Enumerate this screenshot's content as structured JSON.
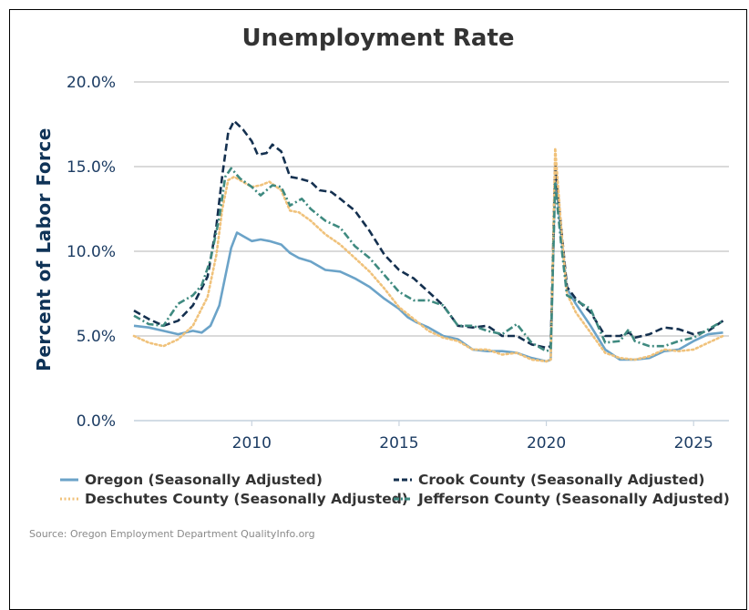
{
  "chart_data": {
    "type": "line",
    "title": "Unemployment Rate",
    "ylabel": "Percent of Labor Force",
    "xlabel": "",
    "ylim": [
      0,
      20
    ],
    "xlim": [
      2006,
      2026.2
    ],
    "y_ticks": [
      "0.0%",
      "5.0%",
      "10.0%",
      "15.0%",
      "20.0%"
    ],
    "x_ticks": [
      "2010",
      "2015",
      "2020",
      "2025"
    ],
    "grid": "horizontal",
    "legend_position": "bottom",
    "source": "Source: Oregon Employment Department QualityInfo.org",
    "series": [
      {
        "name": "Oregon (Seasonally Adjusted)",
        "color": "#6ba3c8",
        "style": "solid",
        "points": [
          [
            2006.0,
            5.6
          ],
          [
            2006.5,
            5.5
          ],
          [
            2007.0,
            5.3
          ],
          [
            2007.5,
            5.1
          ],
          [
            2008.0,
            5.3
          ],
          [
            2008.3,
            5.2
          ],
          [
            2008.6,
            5.6
          ],
          [
            2008.9,
            6.8
          ],
          [
            2009.1,
            8.5
          ],
          [
            2009.3,
            10.2
          ],
          [
            2009.5,
            11.1
          ],
          [
            2009.7,
            10.9
          ],
          [
            2010.0,
            10.6
          ],
          [
            2010.3,
            10.7
          ],
          [
            2010.6,
            10.6
          ],
          [
            2011.0,
            10.4
          ],
          [
            2011.3,
            9.9
          ],
          [
            2011.6,
            9.6
          ],
          [
            2012.0,
            9.4
          ],
          [
            2012.5,
            8.9
          ],
          [
            2013.0,
            8.8
          ],
          [
            2013.5,
            8.4
          ],
          [
            2014.0,
            7.9
          ],
          [
            2014.5,
            7.2
          ],
          [
            2015.0,
            6.6
          ],
          [
            2015.3,
            6.1
          ],
          [
            2015.6,
            5.8
          ],
          [
            2016.0,
            5.5
          ],
          [
            2016.5,
            5.0
          ],
          [
            2017.0,
            4.8
          ],
          [
            2017.5,
            4.2
          ],
          [
            2018.0,
            4.1
          ],
          [
            2018.5,
            4.1
          ],
          [
            2019.0,
            4.0
          ],
          [
            2019.5,
            3.7
          ],
          [
            2020.0,
            3.5
          ],
          [
            2020.15,
            3.6
          ],
          [
            2020.3,
            14.8
          ],
          [
            2020.5,
            11.0
          ],
          [
            2020.7,
            7.8
          ],
          [
            2021.0,
            6.9
          ],
          [
            2021.5,
            5.6
          ],
          [
            2022.0,
            4.2
          ],
          [
            2022.5,
            3.6
          ],
          [
            2023.0,
            3.6
          ],
          [
            2023.5,
            3.7
          ],
          [
            2024.0,
            4.1
          ],
          [
            2024.5,
            4.2
          ],
          [
            2025.0,
            4.7
          ],
          [
            2025.5,
            5.1
          ],
          [
            2026.0,
            5.2
          ]
        ]
      },
      {
        "name": "Crook County (Seasonally Adjusted)",
        "color": "#14304f",
        "style": "dashed",
        "points": [
          [
            2006.0,
            6.5
          ],
          [
            2006.5,
            6.0
          ],
          [
            2007.0,
            5.6
          ],
          [
            2007.5,
            5.9
          ],
          [
            2008.0,
            6.8
          ],
          [
            2008.5,
            8.5
          ],
          [
            2008.8,
            11.5
          ],
          [
            2009.0,
            14.5
          ],
          [
            2009.2,
            17.0
          ],
          [
            2009.4,
            17.7
          ],
          [
            2009.7,
            17.2
          ],
          [
            2010.0,
            16.5
          ],
          [
            2010.2,
            15.7
          ],
          [
            2010.5,
            15.8
          ],
          [
            2010.7,
            16.3
          ],
          [
            2011.0,
            15.9
          ],
          [
            2011.3,
            14.4
          ],
          [
            2011.6,
            14.3
          ],
          [
            2012.0,
            14.1
          ],
          [
            2012.3,
            13.6
          ],
          [
            2012.7,
            13.5
          ],
          [
            2013.0,
            13.1
          ],
          [
            2013.5,
            12.4
          ],
          [
            2014.0,
            11.2
          ],
          [
            2014.5,
            9.8
          ],
          [
            2015.0,
            8.9
          ],
          [
            2015.5,
            8.4
          ],
          [
            2016.0,
            7.6
          ],
          [
            2016.5,
            6.8
          ],
          [
            2017.0,
            5.6
          ],
          [
            2017.5,
            5.5
          ],
          [
            2018.0,
            5.6
          ],
          [
            2018.5,
            5.0
          ],
          [
            2019.0,
            5.0
          ],
          [
            2019.5,
            4.5
          ],
          [
            2020.0,
            4.3
          ],
          [
            2020.15,
            4.4
          ],
          [
            2020.3,
            15.2
          ],
          [
            2020.5,
            11.5
          ],
          [
            2020.7,
            7.9
          ],
          [
            2021.0,
            7.2
          ],
          [
            2021.5,
            6.4
          ],
          [
            2022.0,
            5.0
          ],
          [
            2022.5,
            5.0
          ],
          [
            2022.8,
            5.2
          ],
          [
            2023.0,
            4.9
          ],
          [
            2023.5,
            5.1
          ],
          [
            2024.0,
            5.5
          ],
          [
            2024.5,
            5.4
          ],
          [
            2025.0,
            5.1
          ],
          [
            2025.5,
            5.3
          ],
          [
            2026.0,
            5.9
          ]
        ]
      },
      {
        "name": "Deschutes County (Seasonally Adjusted)",
        "color": "#f0c27b",
        "style": "dotted",
        "points": [
          [
            2006.0,
            5.0
          ],
          [
            2006.5,
            4.6
          ],
          [
            2007.0,
            4.4
          ],
          [
            2007.5,
            4.8
          ],
          [
            2008.0,
            5.6
          ],
          [
            2008.5,
            7.3
          ],
          [
            2008.8,
            9.8
          ],
          [
            2009.0,
            12.5
          ],
          [
            2009.2,
            14.2
          ],
          [
            2009.4,
            14.4
          ],
          [
            2009.7,
            14.1
          ],
          [
            2010.0,
            13.8
          ],
          [
            2010.3,
            13.9
          ],
          [
            2010.6,
            14.1
          ],
          [
            2011.0,
            13.6
          ],
          [
            2011.3,
            12.4
          ],
          [
            2011.6,
            12.3
          ],
          [
            2012.0,
            11.8
          ],
          [
            2012.5,
            11.0
          ],
          [
            2013.0,
            10.4
          ],
          [
            2013.5,
            9.6
          ],
          [
            2014.0,
            8.8
          ],
          [
            2014.5,
            7.8
          ],
          [
            2015.0,
            6.7
          ],
          [
            2015.5,
            6.0
          ],
          [
            2016.0,
            5.3
          ],
          [
            2016.5,
            4.9
          ],
          [
            2017.0,
            4.7
          ],
          [
            2017.5,
            4.2
          ],
          [
            2018.0,
            4.2
          ],
          [
            2018.5,
            3.9
          ],
          [
            2019.0,
            4.0
          ],
          [
            2019.5,
            3.6
          ],
          [
            2020.0,
            3.5
          ],
          [
            2020.15,
            3.6
          ],
          [
            2020.3,
            16.1
          ],
          [
            2020.5,
            11.5
          ],
          [
            2020.7,
            7.5
          ],
          [
            2021.0,
            6.4
          ],
          [
            2021.5,
            5.2
          ],
          [
            2022.0,
            4.0
          ],
          [
            2022.5,
            3.7
          ],
          [
            2023.0,
            3.6
          ],
          [
            2023.5,
            3.8
          ],
          [
            2024.0,
            4.2
          ],
          [
            2024.5,
            4.1
          ],
          [
            2025.0,
            4.2
          ],
          [
            2025.5,
            4.6
          ],
          [
            2026.0,
            5.0
          ]
        ]
      },
      {
        "name": "Jefferson County (Seasonally Adjusted)",
        "color": "#3f8a80",
        "style": "dashdot",
        "points": [
          [
            2006.0,
            6.2
          ],
          [
            2006.5,
            5.7
          ],
          [
            2007.0,
            5.6
          ],
          [
            2007.5,
            6.9
          ],
          [
            2008.0,
            7.4
          ],
          [
            2008.3,
            8.0
          ],
          [
            2008.6,
            9.5
          ],
          [
            2008.9,
            12.0
          ],
          [
            2009.1,
            14.4
          ],
          [
            2009.3,
            14.9
          ],
          [
            2009.6,
            14.3
          ],
          [
            2010.0,
            13.8
          ],
          [
            2010.3,
            13.3
          ],
          [
            2010.7,
            13.9
          ],
          [
            2011.0,
            13.8
          ],
          [
            2011.3,
            12.7
          ],
          [
            2011.7,
            13.1
          ],
          [
            2012.0,
            12.5
          ],
          [
            2012.5,
            11.8
          ],
          [
            2013.0,
            11.4
          ],
          [
            2013.5,
            10.3
          ],
          [
            2014.0,
            9.6
          ],
          [
            2014.5,
            8.6
          ],
          [
            2015.0,
            7.6
          ],
          [
            2015.5,
            7.1
          ],
          [
            2016.0,
            7.1
          ],
          [
            2016.5,
            6.8
          ],
          [
            2017.0,
            5.6
          ],
          [
            2017.5,
            5.6
          ],
          [
            2018.0,
            5.3
          ],
          [
            2018.5,
            5.1
          ],
          [
            2019.0,
            5.7
          ],
          [
            2019.5,
            4.6
          ],
          [
            2020.0,
            4.1
          ],
          [
            2020.15,
            4.2
          ],
          [
            2020.3,
            14.0
          ],
          [
            2020.5,
            10.5
          ],
          [
            2020.7,
            7.4
          ],
          [
            2021.0,
            7.1
          ],
          [
            2021.5,
            6.6
          ],
          [
            2022.0,
            4.6
          ],
          [
            2022.5,
            4.7
          ],
          [
            2022.8,
            5.4
          ],
          [
            2023.0,
            4.7
          ],
          [
            2023.5,
            4.4
          ],
          [
            2024.0,
            4.4
          ],
          [
            2024.5,
            4.7
          ],
          [
            2025.0,
            4.9
          ],
          [
            2025.5,
            5.4
          ],
          [
            2026.0,
            5.9
          ]
        ]
      }
    ]
  }
}
